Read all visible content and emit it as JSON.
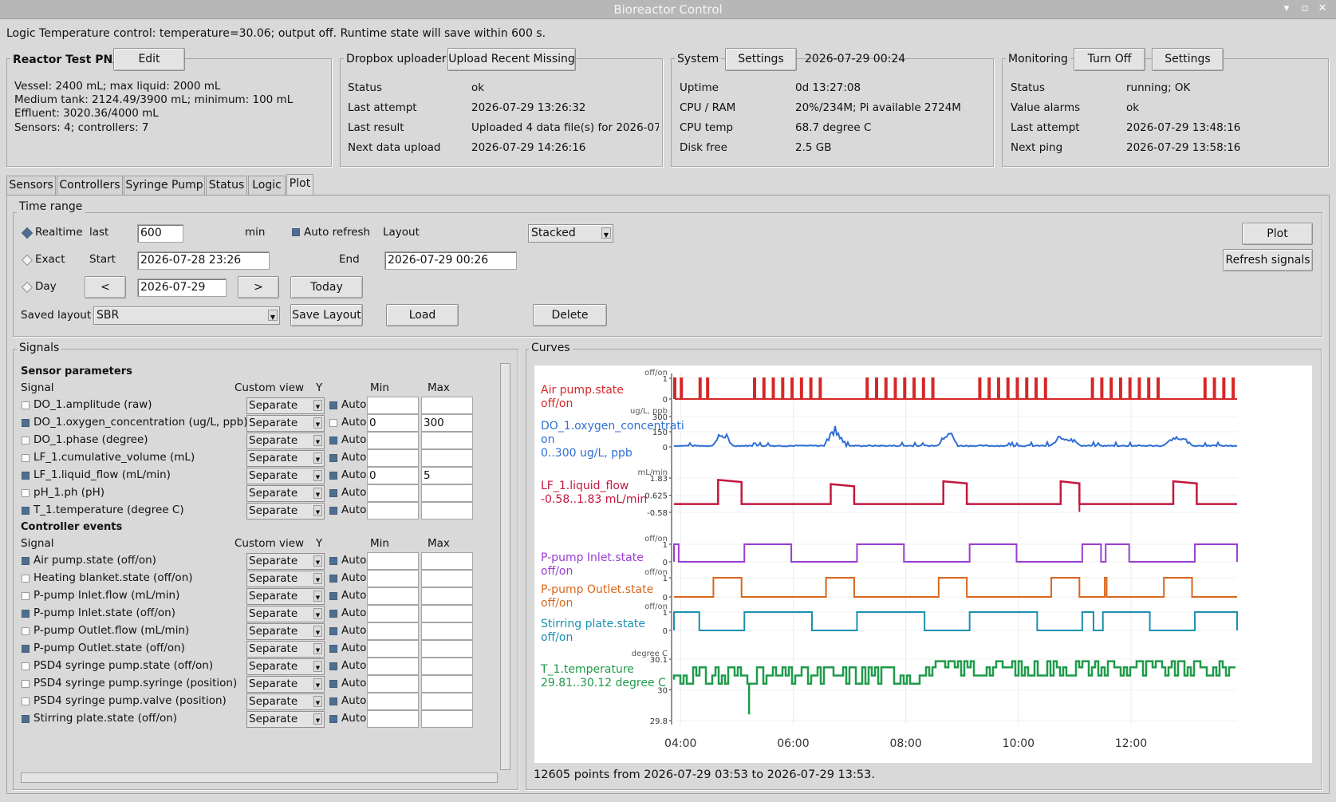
{
  "window": {
    "title": "Bioreactor Control"
  },
  "status_line": "Logic Temperature control: temperature=30.06; output off. Runtime state will save within 600 s.",
  "reactor": {
    "title": "Reactor Test PNA",
    "edit_label": "Edit",
    "lines": [
      "Vessel: 2400 mL; max liquid: 2000 mL",
      "Medium tank: 2124.49/3900 mL; minimum: 100 mL",
      "Effluent: 3020.36/4000 mL",
      "Sensors: 4; controllers: 7"
    ]
  },
  "dropbox": {
    "title": "Dropbox uploader",
    "button": "Upload Recent Missing",
    "rows": [
      [
        "Status",
        "ok"
      ],
      [
        "Last attempt",
        "2026-07-29 13:26:32"
      ],
      [
        "Last result",
        "Uploaded 4 data file(s) for 2026-07"
      ],
      [
        "Next data upload",
        "2026-07-29 14:26:16"
      ]
    ]
  },
  "system": {
    "title": "System",
    "button": "Settings",
    "datetime": "2026-07-29 00:24",
    "rows": [
      [
        "Uptime",
        "0d 13:27:08"
      ],
      [
        "CPU / RAM",
        "20%/234M; Pi available 2724M"
      ],
      [
        "CPU temp",
        "68.7 degree C"
      ],
      [
        "Disk free",
        "2.5 GB"
      ]
    ]
  },
  "monitoring": {
    "title": "Monitoring",
    "button_off": "Turn Off",
    "button_settings": "Settings",
    "rows": [
      [
        "Status",
        "running; OK"
      ],
      [
        "Value alarms",
        "ok"
      ],
      [
        "Last attempt",
        "2026-07-29 13:48:16"
      ],
      [
        "Next ping",
        "2026-07-29 13:58:16"
      ]
    ]
  },
  "tabs": [
    "Sensors",
    "Controllers",
    "Syringe Pump",
    "Status",
    "Logic",
    "Plot"
  ],
  "active_tab": "Plot",
  "time_range": {
    "title": "Time range",
    "realtime_label": "Realtime",
    "last_label": "last",
    "last_value": "600",
    "min_label": "min",
    "auto_refresh_label": "Auto refresh",
    "layout_label": "Layout",
    "layout_value": "Stacked",
    "exact_label": "Exact",
    "start_label": "Start",
    "start_value": "2026-07-28 23:26",
    "end_label": "End",
    "end_value": "2026-07-29 00:26",
    "day_label": "Day",
    "prev_label": "<",
    "day_value": "2026-07-29",
    "next_label": ">",
    "today_label": "Today",
    "saved_layout_label": "Saved layout",
    "saved_layout_value": "SBR",
    "save_layout_label": "Save Layout",
    "load_label": "Load",
    "delete_label": "Delete",
    "plot_label": "Plot",
    "refresh_label": "Refresh signals"
  },
  "signals": {
    "title": "Signals",
    "sensor_header": "Sensor parameters",
    "controller_header": "Controller events",
    "col_signal": "Signal",
    "col_view": "Custom view",
    "col_y": "Y",
    "col_min": "Min",
    "col_max": "Max",
    "auto_label": "Auto",
    "sensor_rows": [
      {
        "name": "DO_1.amplitude (raw)",
        "checked": false,
        "view": "Separate",
        "auto": true,
        "min": "",
        "max": ""
      },
      {
        "name": "DO_1.oxygen_concentration (ug/L, ppb)",
        "checked": true,
        "view": "Separate",
        "auto": false,
        "min": "0",
        "max": "300"
      },
      {
        "name": "DO_1.phase (degree)",
        "checked": false,
        "view": "Separate",
        "auto": true,
        "min": "",
        "max": ""
      },
      {
        "name": "LF_1.cumulative_volume (mL)",
        "checked": false,
        "view": "Separate",
        "auto": true,
        "min": "",
        "max": ""
      },
      {
        "name": "LF_1.liquid_flow (mL/min)",
        "checked": true,
        "view": "Separate",
        "auto": true,
        "min": "0",
        "max": "5"
      },
      {
        "name": "pH_1.ph (pH)",
        "checked": false,
        "view": "Separate",
        "auto": true,
        "min": "",
        "max": ""
      },
      {
        "name": "T_1.temperature (degree C)",
        "checked": true,
        "view": "Separate",
        "auto": true,
        "min": "",
        "max": ""
      }
    ],
    "controller_rows": [
      {
        "name": "Air pump.state (off/on)",
        "checked": true,
        "view": "Separate",
        "auto": true,
        "min": "",
        "max": ""
      },
      {
        "name": "Heating blanket.state (off/on)",
        "checked": false,
        "view": "Separate",
        "auto": true,
        "min": "",
        "max": ""
      },
      {
        "name": "P-pump Inlet.flow (mL/min)",
        "checked": false,
        "view": "Separate",
        "auto": true,
        "min": "",
        "max": ""
      },
      {
        "name": "P-pump Inlet.state (off/on)",
        "checked": true,
        "view": "Separate",
        "auto": true,
        "min": "",
        "max": ""
      },
      {
        "name": "P-pump Outlet.flow (mL/min)",
        "checked": false,
        "view": "Separate",
        "auto": true,
        "min": "",
        "max": ""
      },
      {
        "name": "P-pump Outlet.state (off/on)",
        "checked": true,
        "view": "Separate",
        "auto": true,
        "min": "",
        "max": ""
      },
      {
        "name": "PSD4 syringe pump.state (off/on)",
        "checked": false,
        "view": "Separate",
        "auto": true,
        "min": "",
        "max": ""
      },
      {
        "name": "PSD4 syringe pump.syringe (position)",
        "checked": false,
        "view": "Separate",
        "auto": true,
        "min": "",
        "max": ""
      },
      {
        "name": "PSD4 syringe pump.valve (position)",
        "checked": false,
        "view": "Separate",
        "auto": true,
        "min": "",
        "max": ""
      },
      {
        "name": "Stirring plate.state (off/on)",
        "checked": true,
        "view": "Separate",
        "auto": true,
        "min": "",
        "max": ""
      }
    ]
  },
  "curves": {
    "title": "Curves",
    "footer": "12605 points from 2026-07-29 03:53 to 2026-07-29 13:53.",
    "x_ticks": [
      "04:00",
      "06:00",
      "08:00",
      "10:00",
      "12:00"
    ],
    "colors": {
      "red": "#d62728",
      "blue": "#2f6fd6",
      "crimson": "#c3173d",
      "purple": "#9a3ecf",
      "orange": "#d9661c",
      "teal": "#1a8fb0",
      "green": "#1f9a4a"
    },
    "panels": [
      {
        "id": "air",
        "label1": "Air pump.state",
        "label2": "off/on",
        "color": "#d62728",
        "unit": "off/on",
        "ticks": [
          "1",
          "0"
        ]
      },
      {
        "id": "do",
        "label1": "DO_1.oxygen_concentrati",
        "label2": "on",
        "label3": "0..300 ug/L, ppb",
        "color": "#2f6fd6",
        "unit": "ug/L, ppb",
        "ticks": [
          "300",
          "150",
          "0"
        ]
      },
      {
        "id": "lf",
        "label1": "LF_1.liquid_flow",
        "label2": "-0.58..1.83 mL/min",
        "color": "#c3173d",
        "unit": "mL/min",
        "ticks": [
          "1.83",
          "0.625",
          "-0.58"
        ]
      },
      {
        "id": "inlet",
        "label1": "P-pump Inlet.state",
        "label2": "off/on",
        "color": "#9a3ecf",
        "unit": "off/on",
        "ticks": [
          "1",
          "0"
        ]
      },
      {
        "id": "outlet",
        "label1": "P-pump Outlet.state",
        "label2": "off/on",
        "color": "#d9661c",
        "unit": "off/on",
        "ticks": [
          "1",
          "0"
        ]
      },
      {
        "id": "stir",
        "label1": "Stirring plate.state",
        "label2": "off/on",
        "color": "#1a8fb0",
        "unit": "off/on",
        "ticks": [
          "1",
          "0"
        ]
      },
      {
        "id": "temp",
        "label1": "T_1.temperature",
        "label2": "29.81..30.12 degree C",
        "color": "#1f9a4a",
        "unit": "degree C",
        "ticks": [
          "30.1",
          "30",
          "29.8"
        ]
      }
    ]
  },
  "chart_data": {
    "type": "line",
    "x_range": [
      "2026-07-29 03:53",
      "2026-07-29 13:53"
    ],
    "series": [
      {
        "name": "Air pump.state",
        "kind": "step",
        "pulses_at": [
          "03:53",
          "04:00",
          "04:20",
          "04:28",
          "05:18",
          "05:28",
          "05:38",
          "05:48",
          "05:58",
          "06:08",
          "06:18",
          "06:28",
          "07:18",
          "07:28",
          "07:38",
          "07:48",
          "07:58",
          "08:08",
          "08:18",
          "08:28",
          "09:18",
          "09:28",
          "09:38",
          "09:48",
          "09:58",
          "10:08",
          "10:18",
          "10:28",
          "11:18",
          "11:28",
          "11:38",
          "11:48",
          "11:58",
          "12:08",
          "12:18",
          "12:28",
          "13:18",
          "13:28",
          "13:38",
          "13:48"
        ],
        "range": [
          0,
          1
        ]
      },
      {
        "name": "DO_1.oxygen_concentration",
        "kind": "line",
        "ylim": [
          0,
          300
        ],
        "bursts": [
          [
            "04:35",
            "04:55",
            110
          ],
          [
            "06:35",
            "06:55",
            165
          ],
          [
            "08:35",
            "08:55",
            140
          ],
          [
            "10:35",
            "11:05",
            80
          ],
          [
            "12:35",
            "13:05",
            70
          ]
        ]
      },
      {
        "name": "LF_1.liquid_flow",
        "kind": "step",
        "ylim": [
          -0.58,
          1.83
        ],
        "high_intervals": [
          [
            "04:40",
            "05:05",
            1.7
          ],
          [
            "06:40",
            "07:05",
            1.4
          ],
          [
            "08:40",
            "09:05",
            1.6
          ],
          [
            "10:45",
            "11:05",
            1.6
          ],
          [
            "12:45",
            "13:10",
            1.6
          ]
        ],
        "baseline": 0.0
      },
      {
        "name": "P-pump Inlet.state",
        "kind": "step",
        "on_intervals": [
          [
            "03:53",
            "03:58"
          ],
          [
            "05:08",
            "05:58"
          ],
          [
            "07:08",
            "07:58"
          ],
          [
            "09:08",
            "09:58"
          ],
          [
            "11:08",
            "11:28"
          ],
          [
            "11:33",
            "11:58"
          ],
          [
            "13:08",
            "13:53"
          ]
        ]
      },
      {
        "name": "P-pump Outlet.state",
        "kind": "step",
        "on_intervals": [
          [
            "04:35",
            "05:05"
          ],
          [
            "06:35",
            "07:05"
          ],
          [
            "08:35",
            "09:05"
          ],
          [
            "10:35",
            "11:05"
          ],
          [
            "11:32",
            "11:34"
          ],
          [
            "12:35",
            "13:05"
          ]
        ]
      },
      {
        "name": "Stirring plate.state",
        "kind": "step",
        "on_intervals": [
          [
            "03:53",
            "04:20"
          ],
          [
            "05:08",
            "06:20"
          ],
          [
            "07:08",
            "08:20"
          ],
          [
            "09:08",
            "10:20"
          ],
          [
            "11:08",
            "11:20"
          ],
          [
            "11:30",
            "12:20"
          ],
          [
            "13:08",
            "13:53"
          ]
        ]
      },
      {
        "name": "T_1.temperature",
        "kind": "line",
        "ylim": [
          29.8,
          30.1
        ],
        "range_observed": [
          29.81,
          30.12
        ]
      }
    ]
  }
}
